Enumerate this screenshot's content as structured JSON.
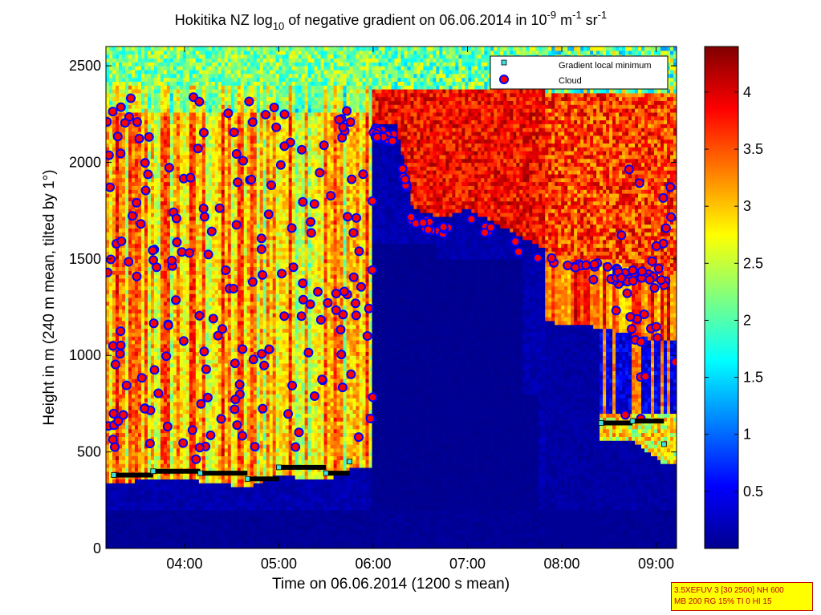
{
  "chart_data": {
    "type": "heatmap",
    "title": {
      "prefix": "Hokitika NZ log",
      "sub": "10",
      "middle": " of negative gradient on 06.06.2014 in 10",
      "exp1": "-9",
      "unit1": " m",
      "exp2": "-1",
      "unit2": " sr",
      "exp3": "-1"
    },
    "xlabel": "Time on 06.06.2014 (1200 s mean)",
    "ylabel": "Height in m (240 m mean, tilted by 1°)",
    "x_range": [
      "03:10",
      "09:13"
    ],
    "x_ticks": [
      "04:00",
      "05:00",
      "06:00",
      "07:00",
      "08:00",
      "09:00"
    ],
    "ylim": [
      0,
      2600
    ],
    "y_ticks": [
      "0",
      "500",
      "1000",
      "1500",
      "2000",
      "2500"
    ],
    "colorbar": {
      "colormap": "jet",
      "range": [
        0,
        4.4
      ],
      "ticks": [
        "0.5",
        "1",
        "1.5",
        "2",
        "2.5",
        "3",
        "3.5",
        "4"
      ]
    },
    "legend": {
      "placement": "top-right",
      "entries": [
        {
          "name": "Gradient local minimum",
          "marker": "square",
          "color": "#40e0e0"
        },
        {
          "name": "Cloud",
          "marker": "circle",
          "color": "#ff0000",
          "edge": "#0000ff"
        }
      ]
    },
    "series": {
      "cloud_base_approx": [
        [
          "03:15",
          380
        ],
        [
          "03:40",
          400
        ],
        [
          "04:10",
          390
        ],
        [
          "04:40",
          360
        ],
        [
          "05:00",
          420
        ],
        [
          "05:30",
          390
        ],
        [
          "05:45",
          450
        ],
        [
          "08:25",
          650
        ],
        [
          "08:45",
          660
        ],
        [
          "09:05",
          540
        ]
      ],
      "gradient_minimum_layer_approx": [
        [
          "05:10",
          2080
        ],
        [
          "05:40",
          2100
        ],
        [
          "06:00",
          2150
        ],
        [
          "06:15",
          2130
        ],
        [
          "06:25",
          1700
        ],
        [
          "06:45",
          1650
        ],
        [
          "07:00",
          1700
        ],
        [
          "07:55",
          1470
        ],
        [
          "08:20",
          1450
        ],
        [
          "08:40",
          1420
        ],
        [
          "09:00",
          1380
        ]
      ]
    }
  },
  "info_box": {
    "line1": "3.5XEFUV 3 [30 2500] NH 600",
    "line2": "MB 200 RG 15% TI 0 HI 15"
  }
}
